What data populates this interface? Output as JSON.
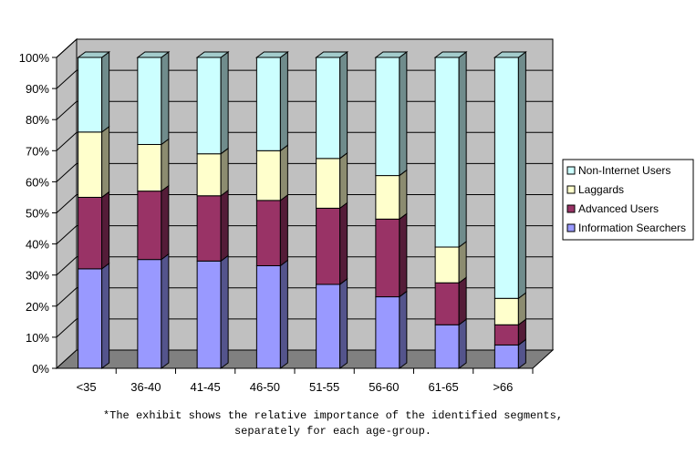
{
  "chart_data": {
    "type": "bar",
    "stacked": true,
    "percent": true,
    "three_d": true,
    "categories": [
      "<35",
      "36-40",
      "41-45",
      "46-50",
      "51-55",
      "56-60",
      "61-65",
      ">66"
    ],
    "series": [
      {
        "name": "Information Searchers",
        "color": "#9999FF",
        "values": [
          32,
          35,
          34.5,
          33,
          27,
          23,
          14,
          7.5
        ]
      },
      {
        "name": "Advanced Users",
        "color": "#993366",
        "values": [
          23,
          22,
          21,
          21,
          24.5,
          25,
          13.5,
          6.5
        ]
      },
      {
        "name": "Laggards",
        "color": "#FFFFCC",
        "values": [
          21,
          15,
          13.5,
          16,
          16,
          14,
          11.5,
          8.5
        ]
      },
      {
        "name": "Non-Internet Users",
        "color": "#CCFFFF",
        "values": [
          24,
          28,
          31,
          30,
          32.5,
          38,
          61,
          77.5
        ]
      }
    ],
    "ylim": [
      0,
      100
    ],
    "yticks": [
      "0%",
      "10%",
      "20%",
      "30%",
      "40%",
      "50%",
      "60%",
      "70%",
      "80%",
      "90%",
      "100%"
    ],
    "grid": true,
    "legend_position": "right",
    "legend_order": [
      "Non-Internet Users",
      "Laggards",
      "Advanced Users",
      "Information Searchers"
    ],
    "wall_color": "#C0C0C0",
    "floor_color": "#808080"
  },
  "caption": {
    "line1": "*The exhibit shows the relative importance of the identified segments,",
    "line2": "separately for each age-group."
  }
}
